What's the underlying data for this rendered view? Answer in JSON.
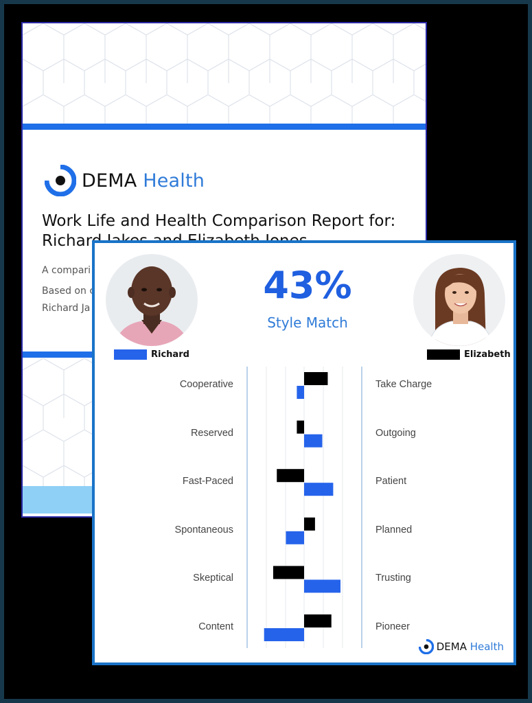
{
  "report": {
    "brand_dark": "DEMA",
    "brand_blue": "Health",
    "title_line1": "Work Life and Health Comparison Report for:",
    "title_line2": "Richard Jakes and Elizabeth Jones",
    "line1": "A compari",
    "line2": "Based on c",
    "line3": "Richard Ja"
  },
  "card": {
    "percentage": "43%",
    "match_label": "Style Match",
    "person_a": "Richard",
    "person_b": "Elizabeth",
    "brand_dark": "DEMA",
    "brand_blue": "Health"
  },
  "colors": {
    "accent": "#1f5fe0",
    "person_a": "#2563eb",
    "person_b": "#000000",
    "border": "#1a73c8"
  },
  "chart_data": {
    "type": "bar",
    "orientation": "diverging-horizontal",
    "categories": [
      "Cooperative / Take Charge",
      "Reserved / Outgoing",
      "Fast-Paced / Patient",
      "Spontaneous / Planned",
      "Skeptical / Trusting",
      "Content / Pioneer"
    ],
    "left_labels": [
      "Cooperative",
      "Reserved",
      "Fast-Paced",
      "Spontaneous",
      "Skeptical",
      "Content"
    ],
    "right_labels": [
      "Take Charge",
      "Outgoing",
      "Patient",
      "Planned",
      "Trusting",
      "Pioneer"
    ],
    "series": [
      {
        "name": "Elizabeth",
        "values": [
          1.3,
          -0.4,
          -1.5,
          0.6,
          -1.7,
          1.5
        ]
      },
      {
        "name": "Richard",
        "values": [
          -0.4,
          1.0,
          1.6,
          -1.0,
          2.0,
          -2.2
        ]
      }
    ],
    "xlim": [
      -3,
      3
    ],
    "grid": true
  }
}
